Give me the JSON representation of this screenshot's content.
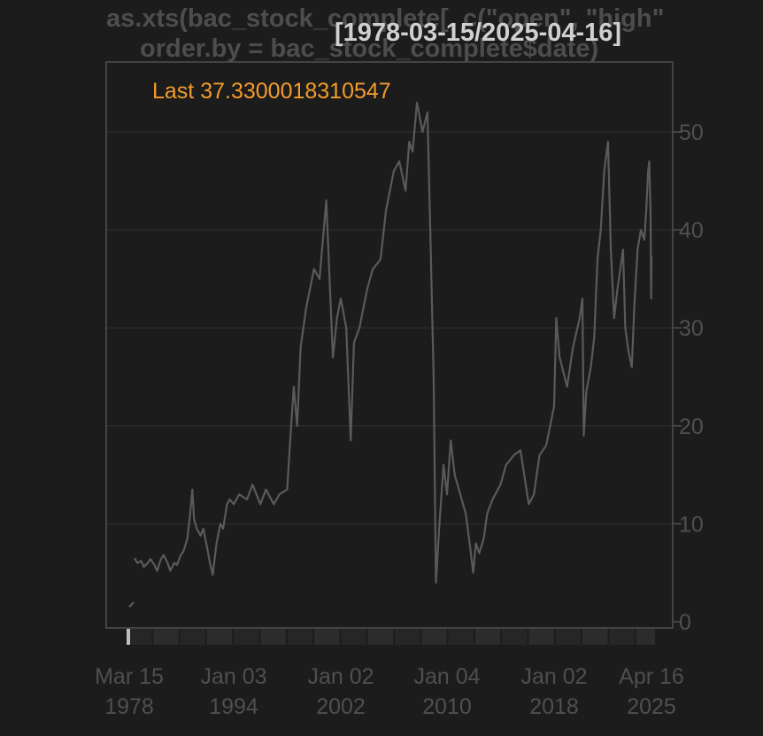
{
  "chart_data": {
    "type": "line",
    "title_line1": "as.xts(bac_stock_complete[, c(\"open\", \"high\"",
    "title_line2": "order.by = bac_stock_complete$date)",
    "date_range": "[1978-03-15/2025-04-16]",
    "last_label": "Last 37.3300018310547",
    "ylim": [
      0,
      56
    ],
    "yticks": [
      "0",
      "10",
      "20",
      "30",
      "40",
      "50"
    ],
    "xticks": [
      {
        "line1": "Mar 15",
        "line2": "1978",
        "date": "1978-03-15"
      },
      {
        "line1": "Jan 03",
        "line2": "1994",
        "date": "1994-01-03"
      },
      {
        "line1": "Jan 02",
        "line2": "2002",
        "date": "2002-01-02"
      },
      {
        "line1": "Jan 04",
        "line2": "2010",
        "date": "2010-01-04"
      },
      {
        "line1": "Jan 02",
        "line2": "2018",
        "date": "2018-01-02"
      },
      {
        "line1": "Apr 16",
        "line2": "2025",
        "date": "2025-04-16"
      }
    ],
    "grid": true,
    "series": [
      {
        "color": "#5a5a5a",
        "x": [
          "1978-03-15",
          "1978-06-01",
          "1978-09-01",
          "1979-01-01",
          "1979-06-01",
          "1980-01-01",
          "1980-06-01",
          "1981-01-01",
          "1981-06-01",
          "1982-01-01",
          "1982-06-01",
          "1983-01-01",
          "1983-06-01",
          "1984-01-01",
          "1984-06-01",
          "1985-01-01",
          "1985-06-01",
          "1986-01-01",
          "1986-06-01",
          "1987-01-01",
          "1987-06-01",
          "1987-10-01",
          "1988-01-01",
          "1988-06-01",
          "1989-01-01",
          "1989-06-01",
          "1990-01-01",
          "1990-06-01",
          "1990-11-01",
          "1991-06-01",
          "1992-01-01",
          "1992-06-01",
          "1993-01-01",
          "1993-06-01",
          "1994-01-03",
          "1994-06-01",
          "1995-01-01",
          "1995-06-01",
          "1996-01-01",
          "1996-06-01",
          "1997-01-01",
          "1997-06-01",
          "1998-01-01",
          "1998-04-01",
          "1998-07-01",
          "1998-10-01",
          "1999-01-01",
          "1999-06-01",
          "2000-01-01",
          "2000-06-01",
          "2000-12-01",
          "2001-06-01",
          "2001-09-21",
          "2002-01-02",
          "2002-06-01",
          "2002-10-01",
          "2003-01-01",
          "2003-06-01",
          "2004-01-01",
          "2004-06-01",
          "2005-01-01",
          "2005-06-01",
          "2006-01-01",
          "2006-06-01",
          "2006-11-20",
          "2007-03-01",
          "2007-06-01",
          "2007-10-01",
          "2008-03-01",
          "2008-07-15",
          "2008-10-01",
          "2009-01-01",
          "2009-03-06",
          "2009-06-01",
          "2009-10-01",
          "2010-01-04",
          "2010-04-15",
          "2010-08-01",
          "2011-01-01",
          "2011-06-01",
          "2011-10-01",
          "2011-12-19",
          "2012-03-01",
          "2012-06-01",
          "2012-10-01",
          "2013-01-01",
          "2013-06-01",
          "2014-01-01",
          "2014-06-01",
          "2015-01-01",
          "2015-07-01",
          "2016-02-11",
          "2016-07-01",
          "2016-12-01",
          "2017-06-01",
          "2018-01-02",
          "2018-03-01",
          "2018-06-01",
          "2018-12-24",
          "2019-06-01",
          "2019-12-01",
          "2020-02-15",
          "2020-03-23",
          "2020-06-01",
          "2020-10-01",
          "2021-01-01",
          "2021-04-01",
          "2021-07-01",
          "2021-10-01",
          "2022-01-14",
          "2022-04-01",
          "2022-07-01",
          "2022-10-01",
          "2023-03-01",
          "2023-05-01",
          "2023-08-01",
          "2023-10-27",
          "2024-01-01",
          "2024-04-01",
          "2024-07-01",
          "2024-10-01",
          "2024-11-25",
          "2025-01-15",
          "2025-02-15",
          "2025-03-20",
          "2025-04-08",
          "2025-04-16"
        ],
        "y": [
          1.5,
          1.8,
          2.0,
          6.5,
          6.0,
          6.2,
          5.6,
          6.0,
          6.4,
          5.8,
          5.2,
          6.4,
          6.8,
          6.0,
          5.2,
          6.0,
          5.8,
          6.8,
          7.2,
          8.5,
          11.0,
          13.5,
          10.5,
          9.5,
          8.8,
          9.5,
          7.5,
          6.0,
          4.8,
          8.0,
          10.0,
          9.5,
          12.0,
          12.5,
          12.0,
          13.0,
          12.5,
          14.0,
          12.0,
          13.5,
          12.0,
          13.0,
          13.5,
          19.0,
          24.0,
          20.0,
          28.0,
          32.0,
          36.0,
          35.0,
          43.0,
          27.0,
          31.0,
          33.0,
          30.0,
          18.5,
          28.5,
          30.0,
          34.0,
          36.0,
          37.0,
          42.0,
          46.0,
          47.0,
          44.0,
          49.0,
          48.0,
          53.0,
          50.0,
          52.0,
          40.0,
          25.0,
          4.0,
          9.5,
          16.0,
          13.0,
          18.5,
          15.0,
          13.0,
          11.0,
          7.5,
          5.0,
          8.0,
          7.0,
          8.5,
          11.0,
          12.5,
          14.0,
          16.0,
          17.0,
          17.5,
          12.0,
          13.0,
          17.0,
          18.0,
          22.0,
          31.0,
          27.0,
          24.0,
          28.0,
          31.0,
          33.0,
          19.0,
          23.5,
          26.0,
          29.0,
          37.0,
          40.0,
          46.0,
          49.0,
          38.0,
          31.0,
          34.0,
          38.0,
          30.0,
          27.5,
          26.0,
          32.0,
          38.0,
          40.0,
          39.0,
          42.0,
          46.0,
          47.0,
          42.0,
          33.0,
          37.33
        ],
        "marker_date": "1978-03-15"
      }
    ]
  }
}
